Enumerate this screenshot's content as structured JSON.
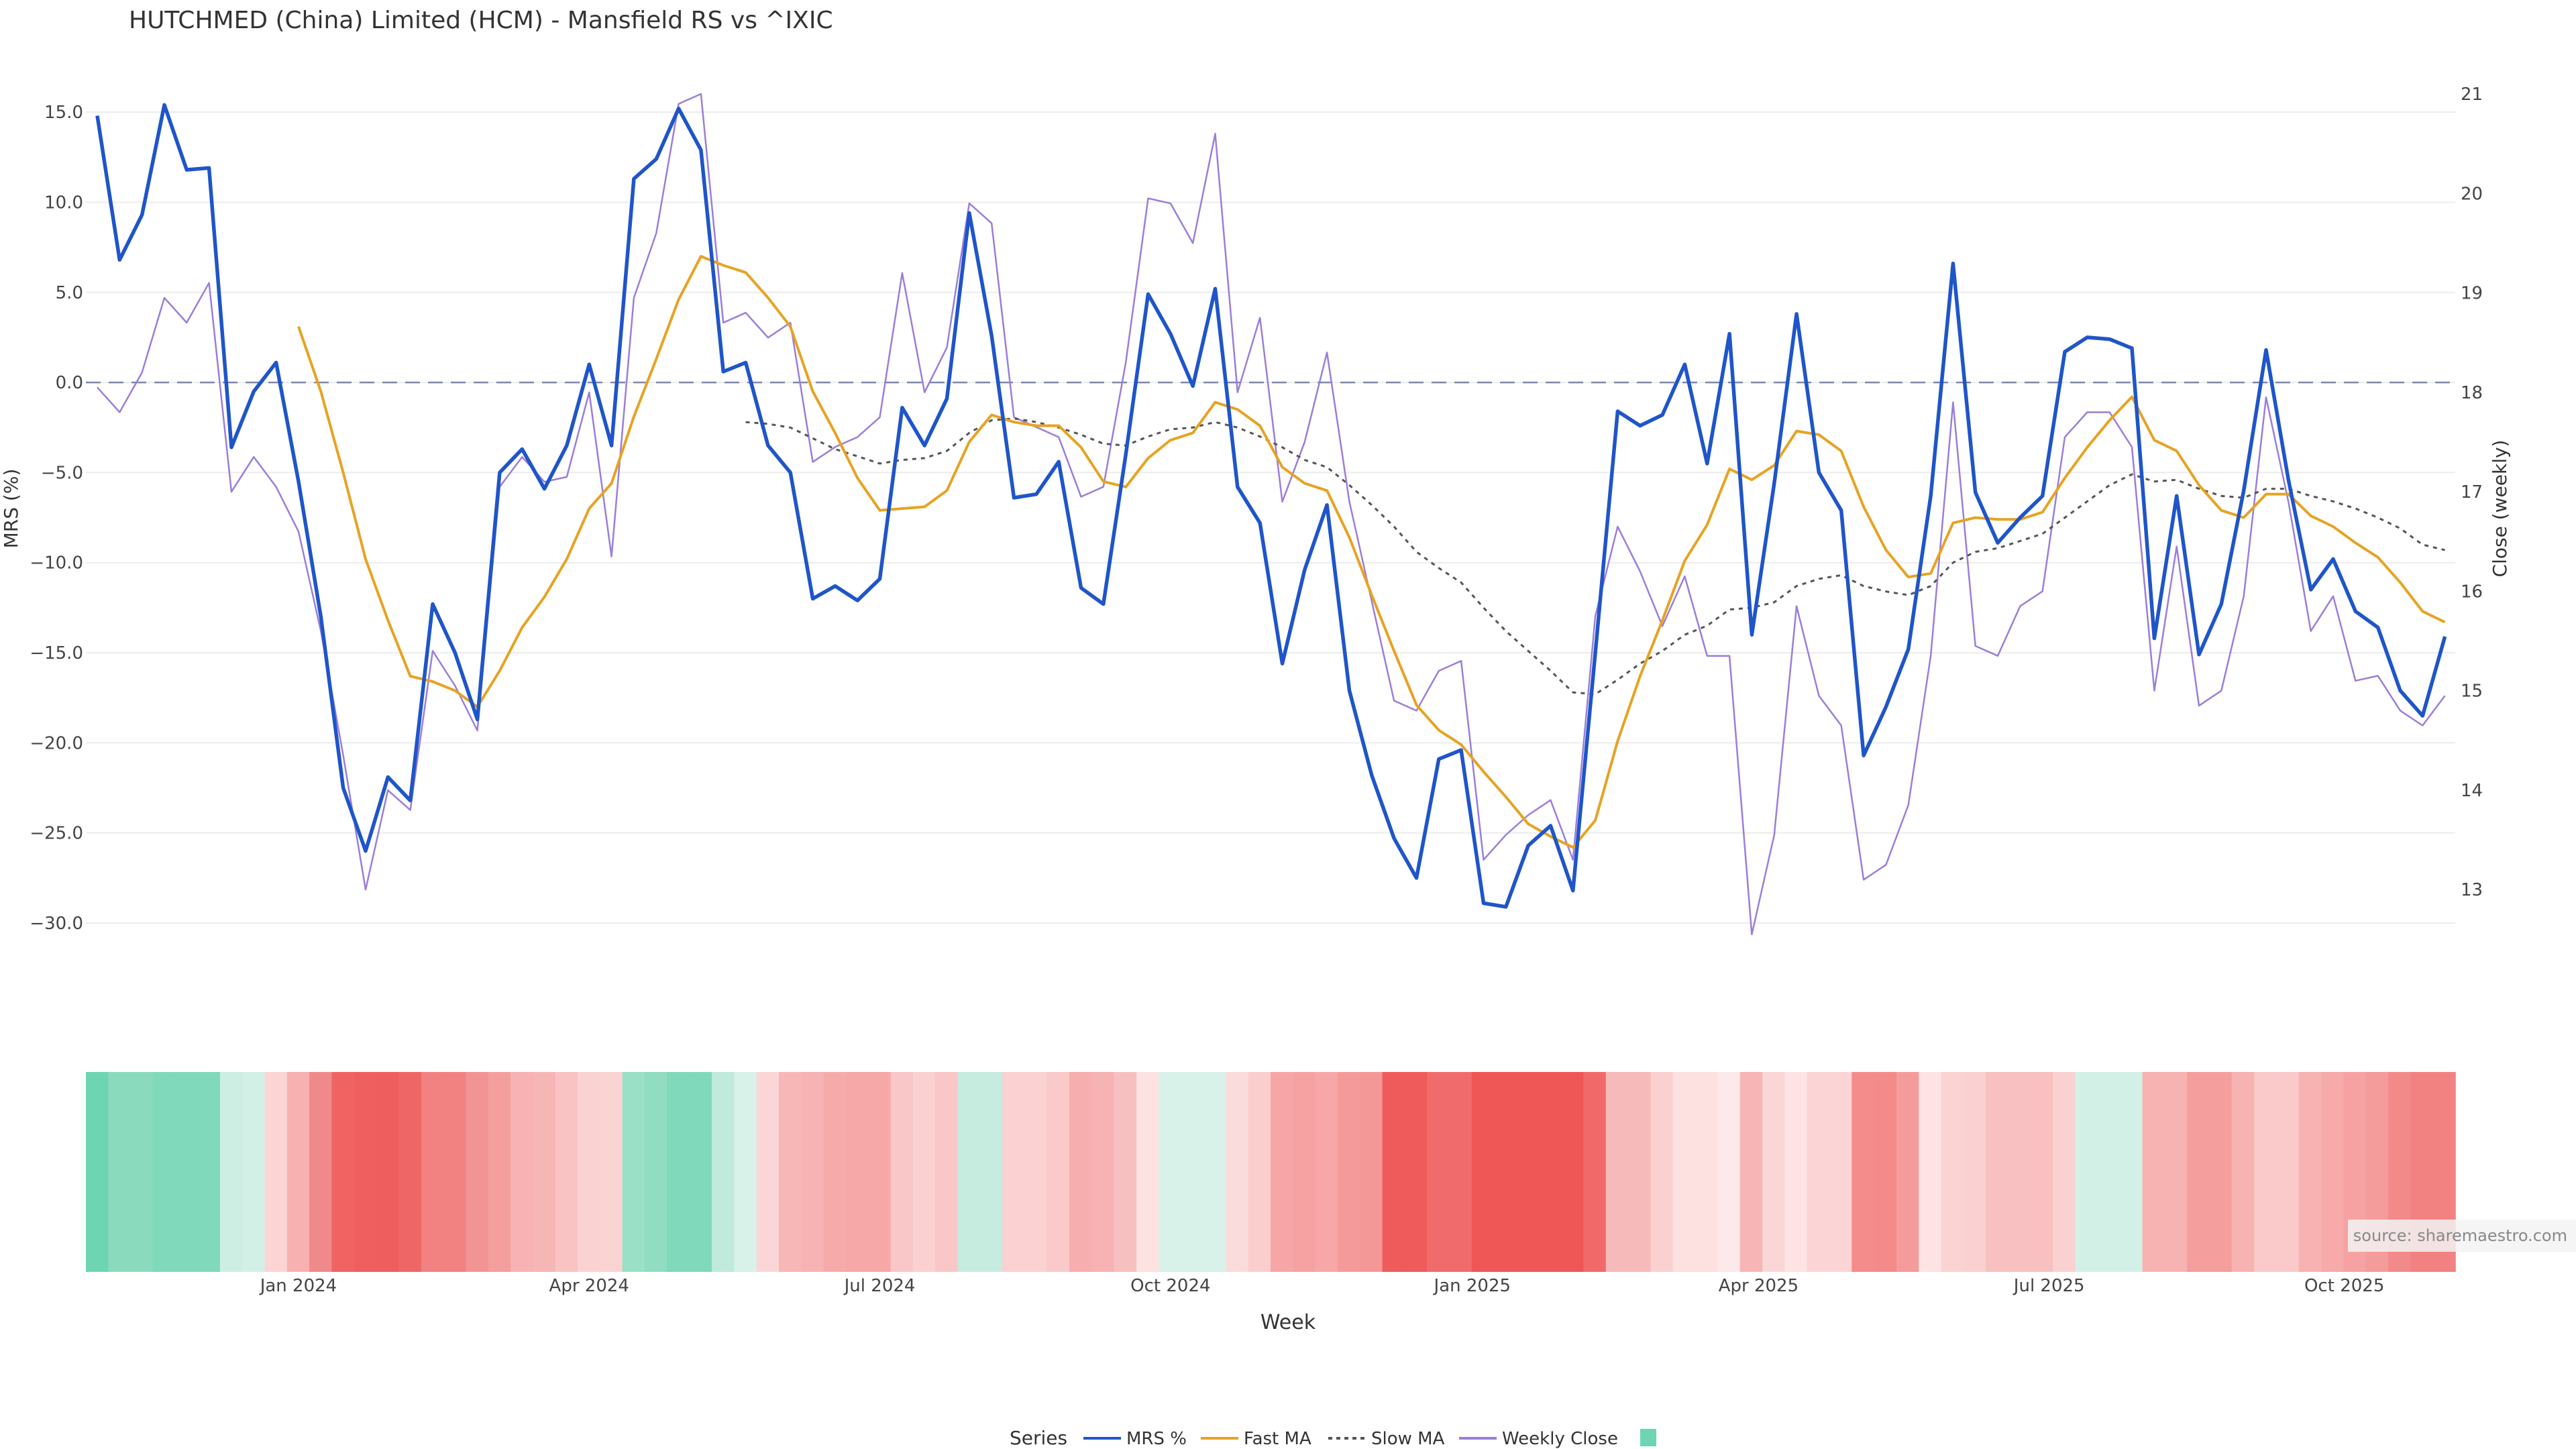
{
  "chart_data": {
    "type": "line",
    "title": "HUTCHMED (China) Limited (HCM) - Mansfield RS vs ^IXIC",
    "xlabel": "Week",
    "ylabel": "MRS (%)",
    "y2label": "Close (weekly)",
    "ylim": [
      -33.5,
      17.5
    ],
    "y2lim": [
      12.03,
      21.27
    ],
    "yticks": [
      "15.0",
      "10.0",
      "5.0",
      "0.0",
      "−5.0",
      "−10.0",
      "−15.0",
      "−20.0",
      "−25.0",
      "−30.0"
    ],
    "y2ticks": [
      "21",
      "20",
      "19",
      "18",
      "17",
      "16",
      "15",
      "14",
      "13"
    ],
    "xticks": [
      {
        "label": "Jan 2024",
        "index": 9
      },
      {
        "label": "Apr 2024",
        "index": 22
      },
      {
        "label": "Jul 2024",
        "index": 35
      },
      {
        "label": "Oct 2024",
        "index": 48
      },
      {
        "label": "Jan 2025",
        "index": 61.5
      },
      {
        "label": "Apr 2025",
        "index": 74.3
      },
      {
        "label": "Jul 2025",
        "index": 87.3
      },
      {
        "label": "Oct 2025",
        "index": 100.5
      }
    ],
    "reference_line": {
      "value": 0,
      "style": "dashed"
    },
    "series": [
      {
        "name": "MRS %",
        "color": "#1f55c9",
        "axis": "left",
        "values": [
          14.8,
          6.8,
          9.3,
          15.4,
          11.8,
          11.9,
          -3.6,
          -0.5,
          1.1,
          -5.5,
          -13.0,
          -22.5,
          -26.0,
          -21.9,
          -23.2,
          -12.3,
          -15.0,
          -18.7,
          -5.0,
          -3.7,
          -5.9,
          -3.5,
          1.0,
          -3.5,
          11.3,
          12.4,
          15.2,
          12.9,
          0.6,
          1.1,
          -3.5,
          -5.0,
          -12.0,
          -11.3,
          -12.1,
          -10.9,
          -1.4,
          -3.5,
          -0.9,
          9.4,
          2.6,
          -6.4,
          -6.2,
          -4.4,
          -11.4,
          -12.3,
          -4.0,
          4.9,
          2.7,
          -0.2,
          5.2,
          -5.8,
          -7.8,
          -15.6,
          -10.4,
          -6.8,
          -17.1,
          -21.8,
          -25.3,
          -27.5,
          -20.9,
          -20.4,
          -28.9,
          -29.1,
          -25.7,
          -24.6,
          -28.2,
          -15.0,
          -1.6,
          -2.4,
          -1.8,
          1.0,
          -4.5,
          2.7,
          -14.0,
          -5.6,
          3.8,
          -5.0,
          -7.1,
          -20.7,
          -18.0,
          -14.8,
          -6.3,
          6.6,
          -6.1,
          -8.9,
          -7.5,
          -6.3,
          1.7,
          2.5,
          2.4,
          1.9,
          -14.2,
          -6.3,
          -15.1,
          -12.3,
          -6.0,
          1.8,
          -5.4,
          -11.5,
          -9.8,
          -12.7,
          -13.6,
          -17.1,
          -18.5,
          -14.1
        ]
      },
      {
        "name": "Fast MA",
        "color": "#e6a323",
        "axis": "left",
        "values": [
          null,
          null,
          null,
          null,
          null,
          null,
          null,
          null,
          null,
          3.1,
          -0.5,
          -5.0,
          -9.8,
          -13.2,
          -16.3,
          -16.6,
          -17.1,
          -18.0,
          -16.0,
          -13.6,
          -11.9,
          -9.8,
          -7.0,
          -5.6,
          -1.9,
          1.3,
          4.6,
          7.0,
          6.5,
          6.1,
          4.7,
          3.1,
          -0.5,
          -2.8,
          -5.3,
          -7.1,
          -7.0,
          -6.9,
          -6.0,
          -3.3,
          -1.8,
          -2.2,
          -2.4,
          -2.4,
          -3.6,
          -5.5,
          -5.8,
          -4.2,
          -3.2,
          -2.8,
          -1.1,
          -1.5,
          -2.4,
          -4.7,
          -5.6,
          -6.0,
          -8.6,
          -11.8,
          -14.9,
          -17.9,
          -19.3,
          -20.1,
          -21.6,
          -23.0,
          -24.5,
          -25.2,
          -25.8,
          -24.3,
          -19.9,
          -16.3,
          -13.2,
          -9.9,
          -7.9,
          -4.8,
          -5.4,
          -4.6,
          -2.7,
          -2.9,
          -3.8,
          -6.9,
          -9.3,
          -10.8,
          -10.6,
          -7.8,
          -7.5,
          -7.6,
          -7.6,
          -7.2,
          -5.3,
          -3.6,
          -2.1,
          -0.8,
          -3.2,
          -3.8,
          -5.7,
          -7.1,
          -7.5,
          -6.2,
          -6.2,
          -7.4,
          -8.0,
          -8.9,
          -9.7,
          -11.1,
          -12.7,
          -13.3
        ]
      },
      {
        "name": "Slow MA",
        "color": "#555555",
        "axis": "left",
        "dashed": true,
        "values": [
          null,
          null,
          null,
          null,
          null,
          null,
          null,
          null,
          null,
          null,
          null,
          null,
          null,
          null,
          null,
          null,
          null,
          null,
          null,
          null,
          null,
          null,
          null,
          null,
          null,
          null,
          null,
          null,
          null,
          -2.2,
          -2.3,
          -2.5,
          -3.1,
          -3.7,
          -4.1,
          -4.5,
          -4.3,
          -4.2,
          -3.8,
          -2.8,
          -2.1,
          -2.0,
          -2.2,
          -2.5,
          -2.9,
          -3.4,
          -3.5,
          -3.0,
          -2.6,
          -2.5,
          -2.2,
          -2.5,
          -3.0,
          -3.6,
          -4.3,
          -4.7,
          -5.7,
          -6.8,
          -8.0,
          -9.4,
          -10.3,
          -11.1,
          -12.5,
          -13.8,
          -14.9,
          -16.0,
          -17.2,
          -17.3,
          -16.5,
          -15.6,
          -14.9,
          -14.0,
          -13.5,
          -12.6,
          -12.5,
          -12.2,
          -11.3,
          -10.9,
          -10.7,
          -11.3,
          -11.6,
          -11.8,
          -11.3,
          -10.0,
          -9.4,
          -9.2,
          -8.8,
          -8.4,
          -7.5,
          -6.6,
          -5.7,
          -5.1,
          -5.5,
          -5.4,
          -5.9,
          -6.3,
          -6.4,
          -5.9,
          -5.9,
          -6.3,
          -6.6,
          -7.0,
          -7.5,
          -8.1,
          -9.0,
          -9.3
        ]
      },
      {
        "name": "Weekly Close",
        "color": "#9b7ed9",
        "axis": "right",
        "values": [
          18.05,
          17.8,
          18.2,
          18.95,
          18.7,
          19.1,
          17.0,
          17.35,
          17.05,
          16.6,
          15.6,
          14.35,
          13.0,
          14.0,
          13.8,
          15.4,
          15.05,
          14.6,
          17.05,
          17.35,
          17.1,
          17.15,
          18.0,
          16.35,
          18.95,
          19.6,
          20.9,
          21.0,
          18.7,
          18.8,
          18.55,
          18.7,
          17.3,
          17.45,
          17.55,
          17.75,
          19.2,
          18.0,
          18.45,
          19.9,
          19.7,
          17.75,
          17.65,
          17.55,
          16.95,
          17.05,
          18.3,
          19.95,
          19.9,
          19.5,
          20.6,
          18.0,
          18.75,
          16.9,
          17.5,
          18.4,
          16.9,
          15.9,
          14.9,
          14.8,
          15.2,
          15.3,
          13.3,
          13.55,
          13.75,
          13.9,
          13.3,
          15.75,
          16.65,
          16.2,
          15.65,
          16.15,
          15.35,
          15.35,
          12.55,
          13.55,
          15.85,
          14.95,
          14.65,
          13.1,
          13.25,
          13.85,
          15.35,
          17.9,
          15.45,
          15.35,
          15.85,
          16.0,
          17.55,
          17.8,
          17.8,
          17.45,
          15.0,
          16.45,
          14.85,
          15.0,
          15.95,
          17.95,
          16.9,
          15.6,
          15.95,
          15.1,
          15.15,
          14.8,
          14.65,
          14.95
        ]
      }
    ],
    "heatmap_strip": {
      "colors": [
        "#6dd5b1",
        "#8adbbd",
        "#8adbbd",
        "#7fd9ba",
        "#7fd9ba",
        "#7fd9ba",
        "#cdeee3",
        "#d3f0e6",
        "#fbd4d4",
        "#f7b1b1",
        "#f08989",
        "#ef6363",
        "#ef5f5f",
        "#ef5e5e",
        "#ef6666",
        "#f28181",
        "#f28282",
        "#f29494",
        "#f49e9e",
        "#f7b3b3",
        "#f7b6b6",
        "#f9c3c3",
        "#fbd2d2",
        "#fad3d3",
        "#99e0c6",
        "#90ddc1",
        "#7fd9ba",
        "#7fd9ba",
        "#bfeadc",
        "#d8f2e9",
        "#fbd6d6",
        "#f8b7b7",
        "#f7b3b3",
        "#f6abab",
        "#f6a7a7",
        "#f6a7a7",
        "#f9c7c7",
        "#fad0d0",
        "#f9c7c7",
        "#c6ecdf",
        "#c6ecdf",
        "#fbd1d1",
        "#fbd1d1",
        "#fac9c9",
        "#f6aeae",
        "#f7b3b3",
        "#f7c0c0",
        "#fde2e2",
        "#d8f2ea",
        "#d8f2ea",
        "#d8f2ea",
        "#fadcdc",
        "#fbcece",
        "#f6a6a6",
        "#f6a2a2",
        "#f7a7a7",
        "#f49a9a",
        "#f49797",
        "#ef5b5b",
        "#ef5b5b",
        "#f06c6c",
        "#f06c6c",
        "#ef5656",
        "#ef5656",
        "#ef5656",
        "#ef5656",
        "#ef5656",
        "#f16a6a",
        "#f7baba",
        "#f7baba",
        "#fbd0d0",
        "#fde0e0",
        "#fde0e0",
        "#fde9e9",
        "#f7b5b5",
        "#fad6d6",
        "#fde3e3",
        "#fbd5d5",
        "#fbd5d5",
        "#f48c8c",
        "#f48b8b",
        "#f49c9c",
        "#fde3e3",
        "#fbd3d3",
        "#fad0d0",
        "#f8c0c0",
        "#f8c0c0",
        "#f8c0c0",
        "#fad1d1",
        "#d3f0e7",
        "#d3f0e7",
        "#d3f0e7",
        "#f7b2b2",
        "#f7b2b2",
        "#f49e9e",
        "#f49e9e",
        "#f7b2b2",
        "#fac9c9",
        "#fac9c9",
        "#f7b2b2",
        "#f7aaaa",
        "#f6a2a2",
        "#f49b9b",
        "#f28a8a",
        "#f28282",
        "#f28282"
      ]
    },
    "legend": {
      "title": "Series",
      "items": [
        "MRS %",
        "Fast MA",
        "Slow MA",
        "Weekly Close",
        ""
      ],
      "placement": "bottom-center"
    },
    "annotation": "source: sharemaestro.com"
  }
}
